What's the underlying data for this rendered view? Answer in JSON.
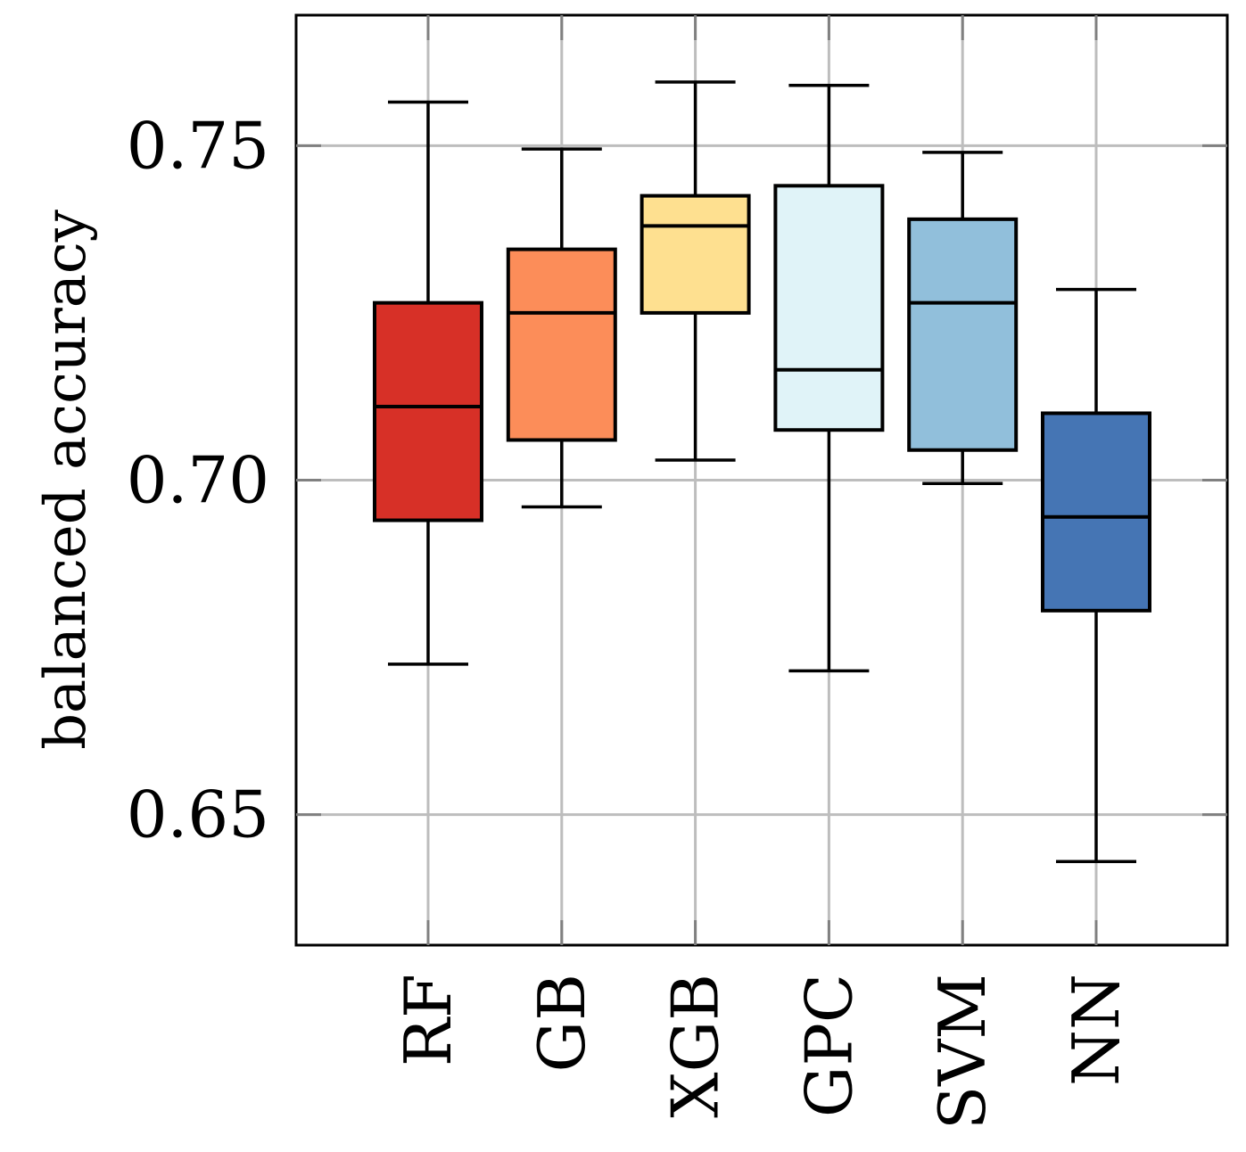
{
  "chart_data": {
    "type": "box",
    "title": "",
    "xlabel": "",
    "ylabel": "balanced accuracy",
    "ylim": [
      0.6305,
      0.7695
    ],
    "yticks": [
      0.65,
      0.7,
      0.75
    ],
    "ytick_labels": [
      "0.65",
      "0.70",
      "0.75"
    ],
    "grid": true,
    "categories": [
      "RF",
      "GB",
      "XGB",
      "GPC",
      "SVM",
      "NN"
    ],
    "boxes": [
      {
        "name": "RF",
        "whislo": 0.6725,
        "q1": 0.694,
        "med": 0.711,
        "q3": 0.7265,
        "whishi": 0.7565,
        "color": "#d73027"
      },
      {
        "name": "GB",
        "whislo": 0.696,
        "q1": 0.706,
        "med": 0.725,
        "q3": 0.7345,
        "whishi": 0.7495,
        "color": "#fc8d59"
      },
      {
        "name": "XGB",
        "whislo": 0.703,
        "q1": 0.725,
        "med": 0.738,
        "q3": 0.7425,
        "whishi": 0.7595,
        "color": "#fee090"
      },
      {
        "name": "GPC",
        "whislo": 0.6715,
        "q1": 0.7075,
        "med": 0.7165,
        "q3": 0.744,
        "whishi": 0.759,
        "color": "#e0f3f8"
      },
      {
        "name": "SVM",
        "whislo": 0.6995,
        "q1": 0.7045,
        "med": 0.7265,
        "q3": 0.739,
        "whishi": 0.749,
        "color": "#91bfdb"
      },
      {
        "name": "NN",
        "whislo": 0.643,
        "q1": 0.6805,
        "med": 0.6945,
        "q3": 0.71,
        "whishi": 0.7285,
        "color": "#4575b4"
      }
    ]
  }
}
